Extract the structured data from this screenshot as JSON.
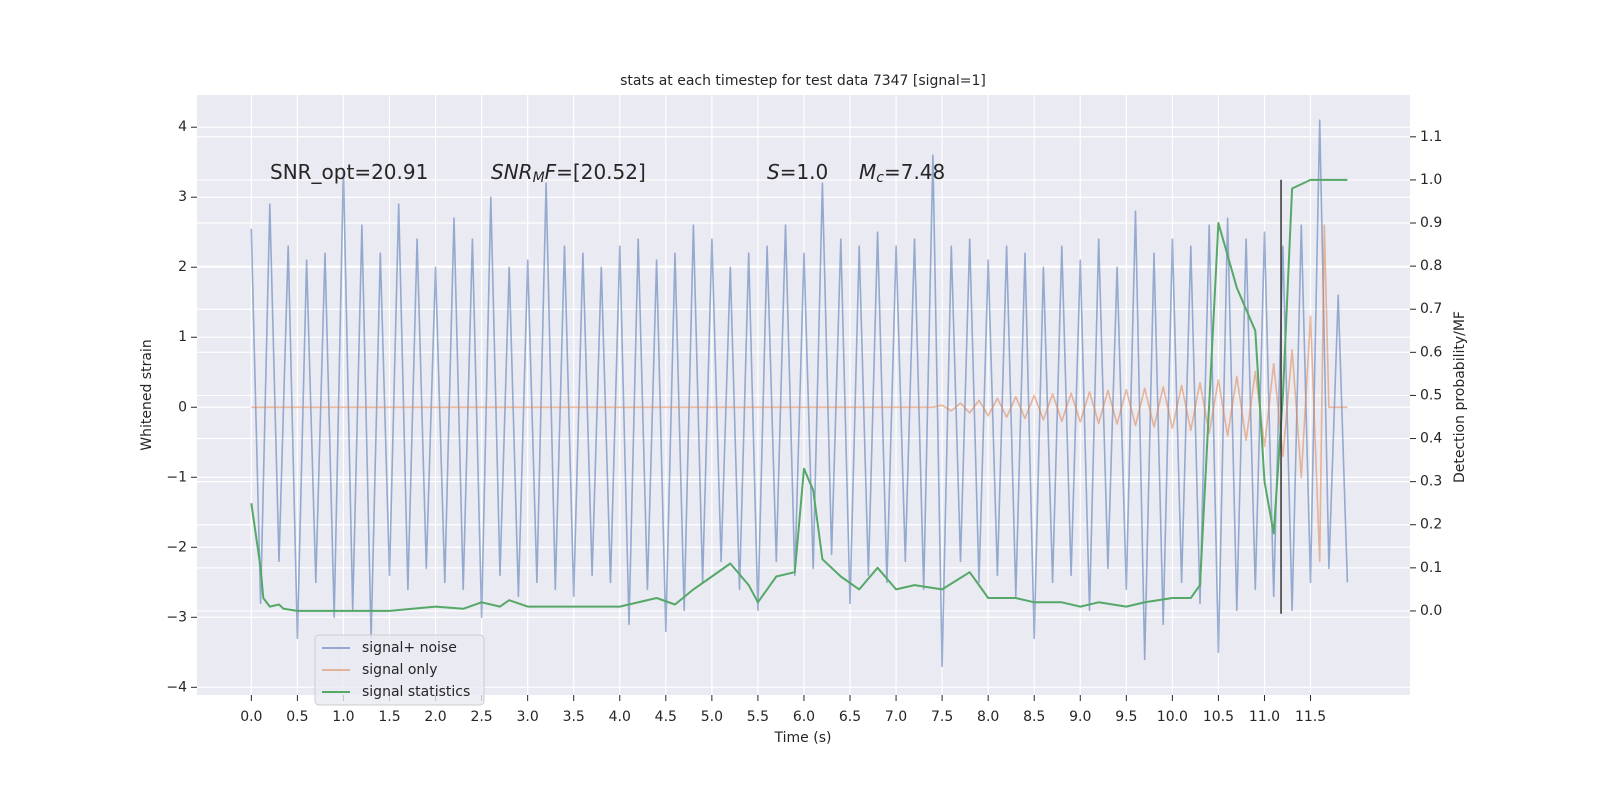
{
  "chart_data": {
    "type": "line",
    "title": "stats at each timestep for test data 7347 [signal=1]",
    "xlabel": "Time (s)",
    "ylabel": "Whitened strain",
    "y2label": "Detection probability/MF",
    "xlim": [
      -0.59,
      12.58
    ],
    "ylim": [
      -4.11,
      4.46
    ],
    "y2lim": [
      -0.195,
      1.197
    ],
    "xticks": [
      {
        "value": 0,
        "label": "0.0"
      },
      0.5,
      {
        "value": 1,
        "label": "1.0"
      },
      1.5,
      {
        "value": 2,
        "label": "2.0"
      },
      2.5,
      {
        "value": 3,
        "label": "3.0"
      },
      3.5,
      {
        "value": 4,
        "label": "4.0"
      },
      4.5,
      {
        "value": 5,
        "label": "5.0"
      },
      5.5,
      {
        "value": 6,
        "label": "6.0"
      },
      6.5,
      {
        "value": 7,
        "label": "7.0"
      },
      7.5,
      {
        "value": 8,
        "label": "8.0"
      },
      8.5,
      {
        "value": 9,
        "label": "9.0"
      },
      9.5,
      {
        "value": 10,
        "label": "10.0"
      },
      10.5,
      {
        "value": 11,
        "label": "11.0"
      },
      11.5
    ],
    "yticks": [
      {
        "value": -4,
        "label": "−4"
      },
      {
        "value": -3,
        "label": "−3"
      },
      {
        "value": -2,
        "label": "−2"
      },
      {
        "value": -1,
        "label": "−1"
      },
      0,
      1,
      2,
      3,
      4
    ],
    "y2ticks": [
      {
        "value": 0,
        "label": "0.0"
      },
      0.1,
      0.2,
      0.3,
      0.4,
      0.5,
      0.6,
      0.7,
      0.8,
      0.9,
      {
        "value": 1,
        "label": "1.0"
      },
      1.1
    ],
    "grid": true,
    "legend": "lower left",
    "annotations": [
      {
        "text": "SNR_opt=20.91"
      },
      {
        "math": "SNR",
        "sub": "M",
        "math2": "F",
        "text": "=[20.52]"
      },
      {
        "math": "S",
        "text": "=1.0"
      },
      {
        "math": "M",
        "sub": "c",
        "text": "=7.48"
      }
    ],
    "vline": {
      "x": 11.18,
      "y": [
        -2.95,
        3.25
      ],
      "color": "#333333"
    },
    "series": [
      {
        "name": "signal+ noise",
        "color": "#4c72b0",
        "x": [
          0.0,
          0.1,
          0.2,
          0.3,
          0.4,
          0.5,
          0.6,
          0.7,
          0.8,
          0.9,
          1.0,
          1.1,
          1.2,
          1.3,
          1.4,
          1.5,
          1.6,
          1.7,
          1.8,
          1.9,
          2.0,
          2.1,
          2.2,
          2.3,
          2.4,
          2.5,
          2.6,
          2.7,
          2.8,
          2.9,
          3.0,
          3.1,
          3.2,
          3.3,
          3.4,
          3.5,
          3.6,
          3.7,
          3.8,
          3.9,
          4.0,
          4.1,
          4.2,
          4.3,
          4.4,
          4.5,
          4.6,
          4.7,
          4.8,
          4.9,
          5.0,
          5.1,
          5.2,
          5.3,
          5.4,
          5.5,
          5.6,
          5.7,
          5.8,
          5.9,
          6.0,
          6.1,
          6.2,
          6.3,
          6.4,
          6.5,
          6.6,
          6.7,
          6.8,
          6.9,
          7.0,
          7.1,
          7.2,
          7.3,
          7.4,
          7.5,
          7.6,
          7.7,
          7.8,
          7.9,
          8.0,
          8.1,
          8.2,
          8.3,
          8.4,
          8.5,
          8.6,
          8.7,
          8.8,
          8.9,
          9.0,
          9.1,
          9.2,
          9.3,
          9.4,
          9.5,
          9.6,
          9.7,
          9.8,
          9.9,
          10.0,
          10.1,
          10.2,
          10.3,
          10.4,
          10.5,
          10.6,
          10.7,
          10.8,
          10.9,
          11.0,
          11.1,
          11.2,
          11.3,
          11.4,
          11.5,
          11.6,
          11.7,
          11.8,
          11.9
        ],
        "values": [
          2.55,
          -2.8,
          2.9,
          -2.2,
          2.3,
          -3.3,
          2.1,
          -2.5,
          2.2,
          -3.0,
          3.4,
          -2.9,
          2.6,
          -3.3,
          2.2,
          -2.4,
          2.9,
          -2.6,
          2.4,
          -2.3,
          2.0,
          -2.5,
          2.7,
          -2.6,
          2.4,
          -3.0,
          3.0,
          -2.4,
          2.0,
          -2.7,
          2.1,
          -2.5,
          3.2,
          -2.6,
          2.3,
          -2.7,
          2.2,
          -2.4,
          2.0,
          -2.5,
          2.3,
          -3.1,
          2.4,
          -2.6,
          2.1,
          -3.2,
          2.2,
          -2.9,
          2.6,
          -2.5,
          2.4,
          -2.2,
          2.0,
          -2.6,
          2.2,
          -2.9,
          2.3,
          -2.2,
          2.6,
          -2.4,
          2.2,
          -2.3,
          3.2,
          -2.1,
          2.4,
          -2.8,
          2.3,
          -2.4,
          2.5,
          -2.5,
          2.3,
          -2.2,
          2.4,
          -2.6,
          3.6,
          -3.7,
          2.3,
          -2.2,
          2.4,
          -2.5,
          2.1,
          -2.4,
          2.3,
          -2.7,
          2.2,
          -3.3,
          2.0,
          -2.5,
          2.3,
          -2.4,
          2.1,
          -2.9,
          2.4,
          -2.3,
          2.0,
          -2.6,
          2.8,
          -3.6,
          2.2,
          -3.1,
          2.4,
          -2.5,
          2.3,
          -2.8,
          2.6,
          -3.5,
          2.7,
          -2.9,
          2.4,
          -2.6,
          2.5,
          -2.7,
          2.3,
          -2.9,
          2.6,
          -2.5,
          4.1,
          -2.3,
          1.6,
          -2.5
        ]
      },
      {
        "name": "signal only",
        "color": "#dd8452",
        "x": [
          0.0,
          7.4,
          7.5,
          7.6,
          7.7,
          7.8,
          7.9,
          8.0,
          8.1,
          8.2,
          8.3,
          8.4,
          8.5,
          8.6,
          8.7,
          8.8,
          8.9,
          9.0,
          9.1,
          9.2,
          9.3,
          9.4,
          9.5,
          9.6,
          9.7,
          9.8,
          9.9,
          10.0,
          10.1,
          10.2,
          10.3,
          10.4,
          10.5,
          10.6,
          10.7,
          10.8,
          10.9,
          11.0,
          11.1,
          11.2,
          11.3,
          11.4,
          11.5,
          11.6,
          11.65,
          11.7,
          11.9
        ],
        "values": [
          0,
          0,
          0.03,
          -0.05,
          0.06,
          -0.08,
          0.1,
          -0.12,
          0.13,
          -0.14,
          0.15,
          -0.16,
          0.17,
          -0.18,
          0.19,
          -0.2,
          0.2,
          -0.21,
          0.22,
          -0.23,
          0.24,
          -0.24,
          0.25,
          -0.26,
          0.27,
          -0.28,
          0.29,
          -0.3,
          0.31,
          -0.33,
          0.35,
          -0.37,
          0.39,
          -0.41,
          0.44,
          -0.47,
          0.51,
          -0.56,
          0.62,
          -0.7,
          0.82,
          -1.0,
          1.3,
          -2.2,
          2.6,
          0,
          0
        ]
      },
      {
        "name": "signal statistics",
        "color": "#55a868",
        "axis": "y2",
        "x": [
          0.0,
          0.1,
          0.13,
          0.2,
          0.3,
          0.35,
          0.5,
          1.0,
          1.5,
          2.0,
          2.3,
          2.5,
          2.7,
          2.8,
          3.0,
          3.5,
          4.0,
          4.4,
          4.6,
          4.8,
          5.0,
          5.2,
          5.4,
          5.5,
          5.6,
          5.7,
          5.9,
          6.0,
          6.1,
          6.2,
          6.4,
          6.6,
          6.8,
          7.0,
          7.2,
          7.5,
          7.8,
          8.0,
          8.3,
          8.5,
          8.8,
          9.0,
          9.2,
          9.5,
          9.7,
          10.0,
          10.2,
          10.3,
          10.5,
          10.7,
          10.9,
          11.0,
          11.1,
          11.2,
          11.3,
          11.5,
          11.9
        ],
        "values": [
          0.25,
          0.1,
          0.03,
          0.01,
          0.015,
          0.005,
          0.0,
          0.0,
          0.0,
          0.01,
          0.005,
          0.02,
          0.01,
          0.025,
          0.01,
          0.01,
          0.01,
          0.03,
          0.015,
          0.05,
          0.08,
          0.11,
          0.06,
          0.02,
          0.05,
          0.08,
          0.09,
          0.33,
          0.28,
          0.12,
          0.08,
          0.05,
          0.1,
          0.05,
          0.06,
          0.05,
          0.09,
          0.03,
          0.03,
          0.02,
          0.02,
          0.01,
          0.02,
          0.01,
          0.02,
          0.03,
          0.03,
          0.06,
          0.9,
          0.75,
          0.65,
          0.3,
          0.18,
          0.5,
          0.98,
          1.0,
          1.0
        ]
      }
    ]
  }
}
